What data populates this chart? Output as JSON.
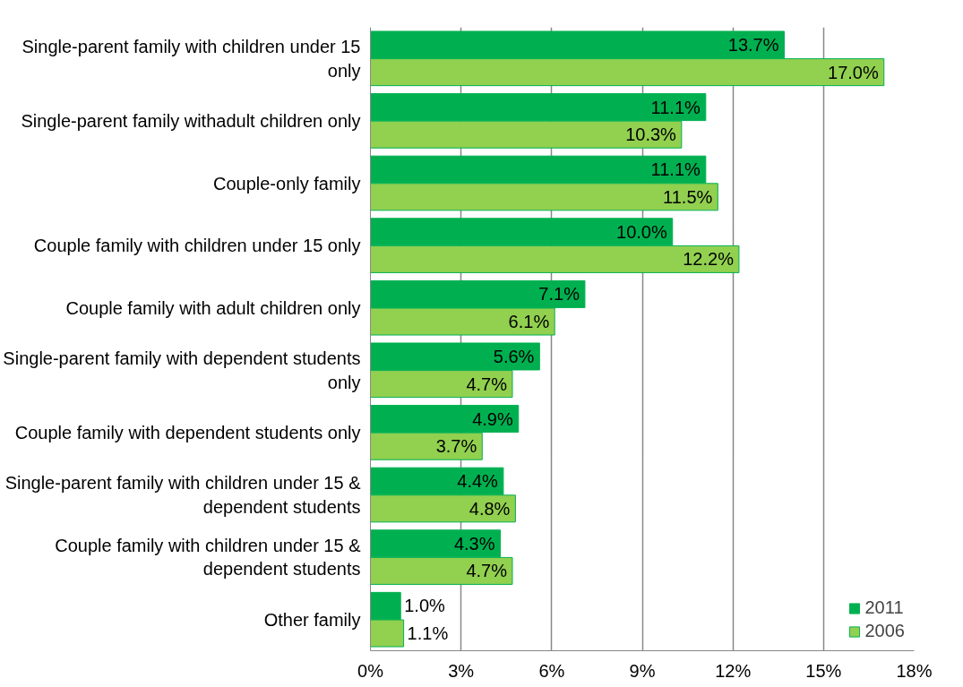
{
  "chart_data": {
    "type": "bar",
    "orientation": "horizontal",
    "categories": [
      "Single-parent family with children under 15 only",
      "Single-parent family withadult children only",
      "Couple-only family",
      "Couple family with children under 15 only",
      "Couple family with adult children only",
      "Single-parent family with dependent students only",
      "Couple family with dependent students only",
      "Single-parent family with children under 15 & dependent students",
      "Couple family with children under 15 & dependent students",
      "Other family"
    ],
    "series": [
      {
        "name": "2011",
        "color": "#00b050",
        "values": [
          13.7,
          11.1,
          11.1,
          10.0,
          7.1,
          5.6,
          4.9,
          4.4,
          4.3,
          1.0
        ],
        "value_labels": [
          "13.7%",
          "11.1%",
          "11.1%",
          "10.0%",
          "7.1%",
          "5.6%",
          "4.9%",
          "4.4%",
          "4.3%",
          "1.0%"
        ]
      },
      {
        "name": "2006",
        "color": "#92d050",
        "values": [
          17.0,
          10.3,
          11.5,
          12.2,
          6.1,
          4.7,
          3.7,
          4.8,
          4.7,
          1.1
        ],
        "value_labels": [
          "17.0%",
          "10.3%",
          "11.5%",
          "12.2%",
          "6.1%",
          "4.7%",
          "3.7%",
          "4.8%",
          "4.7%",
          "1.1%"
        ]
      }
    ],
    "xlim": [
      0,
      18
    ],
    "xticks": [
      {
        "value": 0,
        "label": "0%"
      },
      {
        "value": 3,
        "label": "3%"
      },
      {
        "value": 6,
        "label": "6%"
      },
      {
        "value": 9,
        "label": "9%"
      },
      {
        "value": 12,
        "label": "12%"
      },
      {
        "value": 15,
        "label": "15%"
      },
      {
        "value": 18,
        "label": "18%"
      }
    ],
    "grid": "x",
    "legend": "bottom right"
  }
}
